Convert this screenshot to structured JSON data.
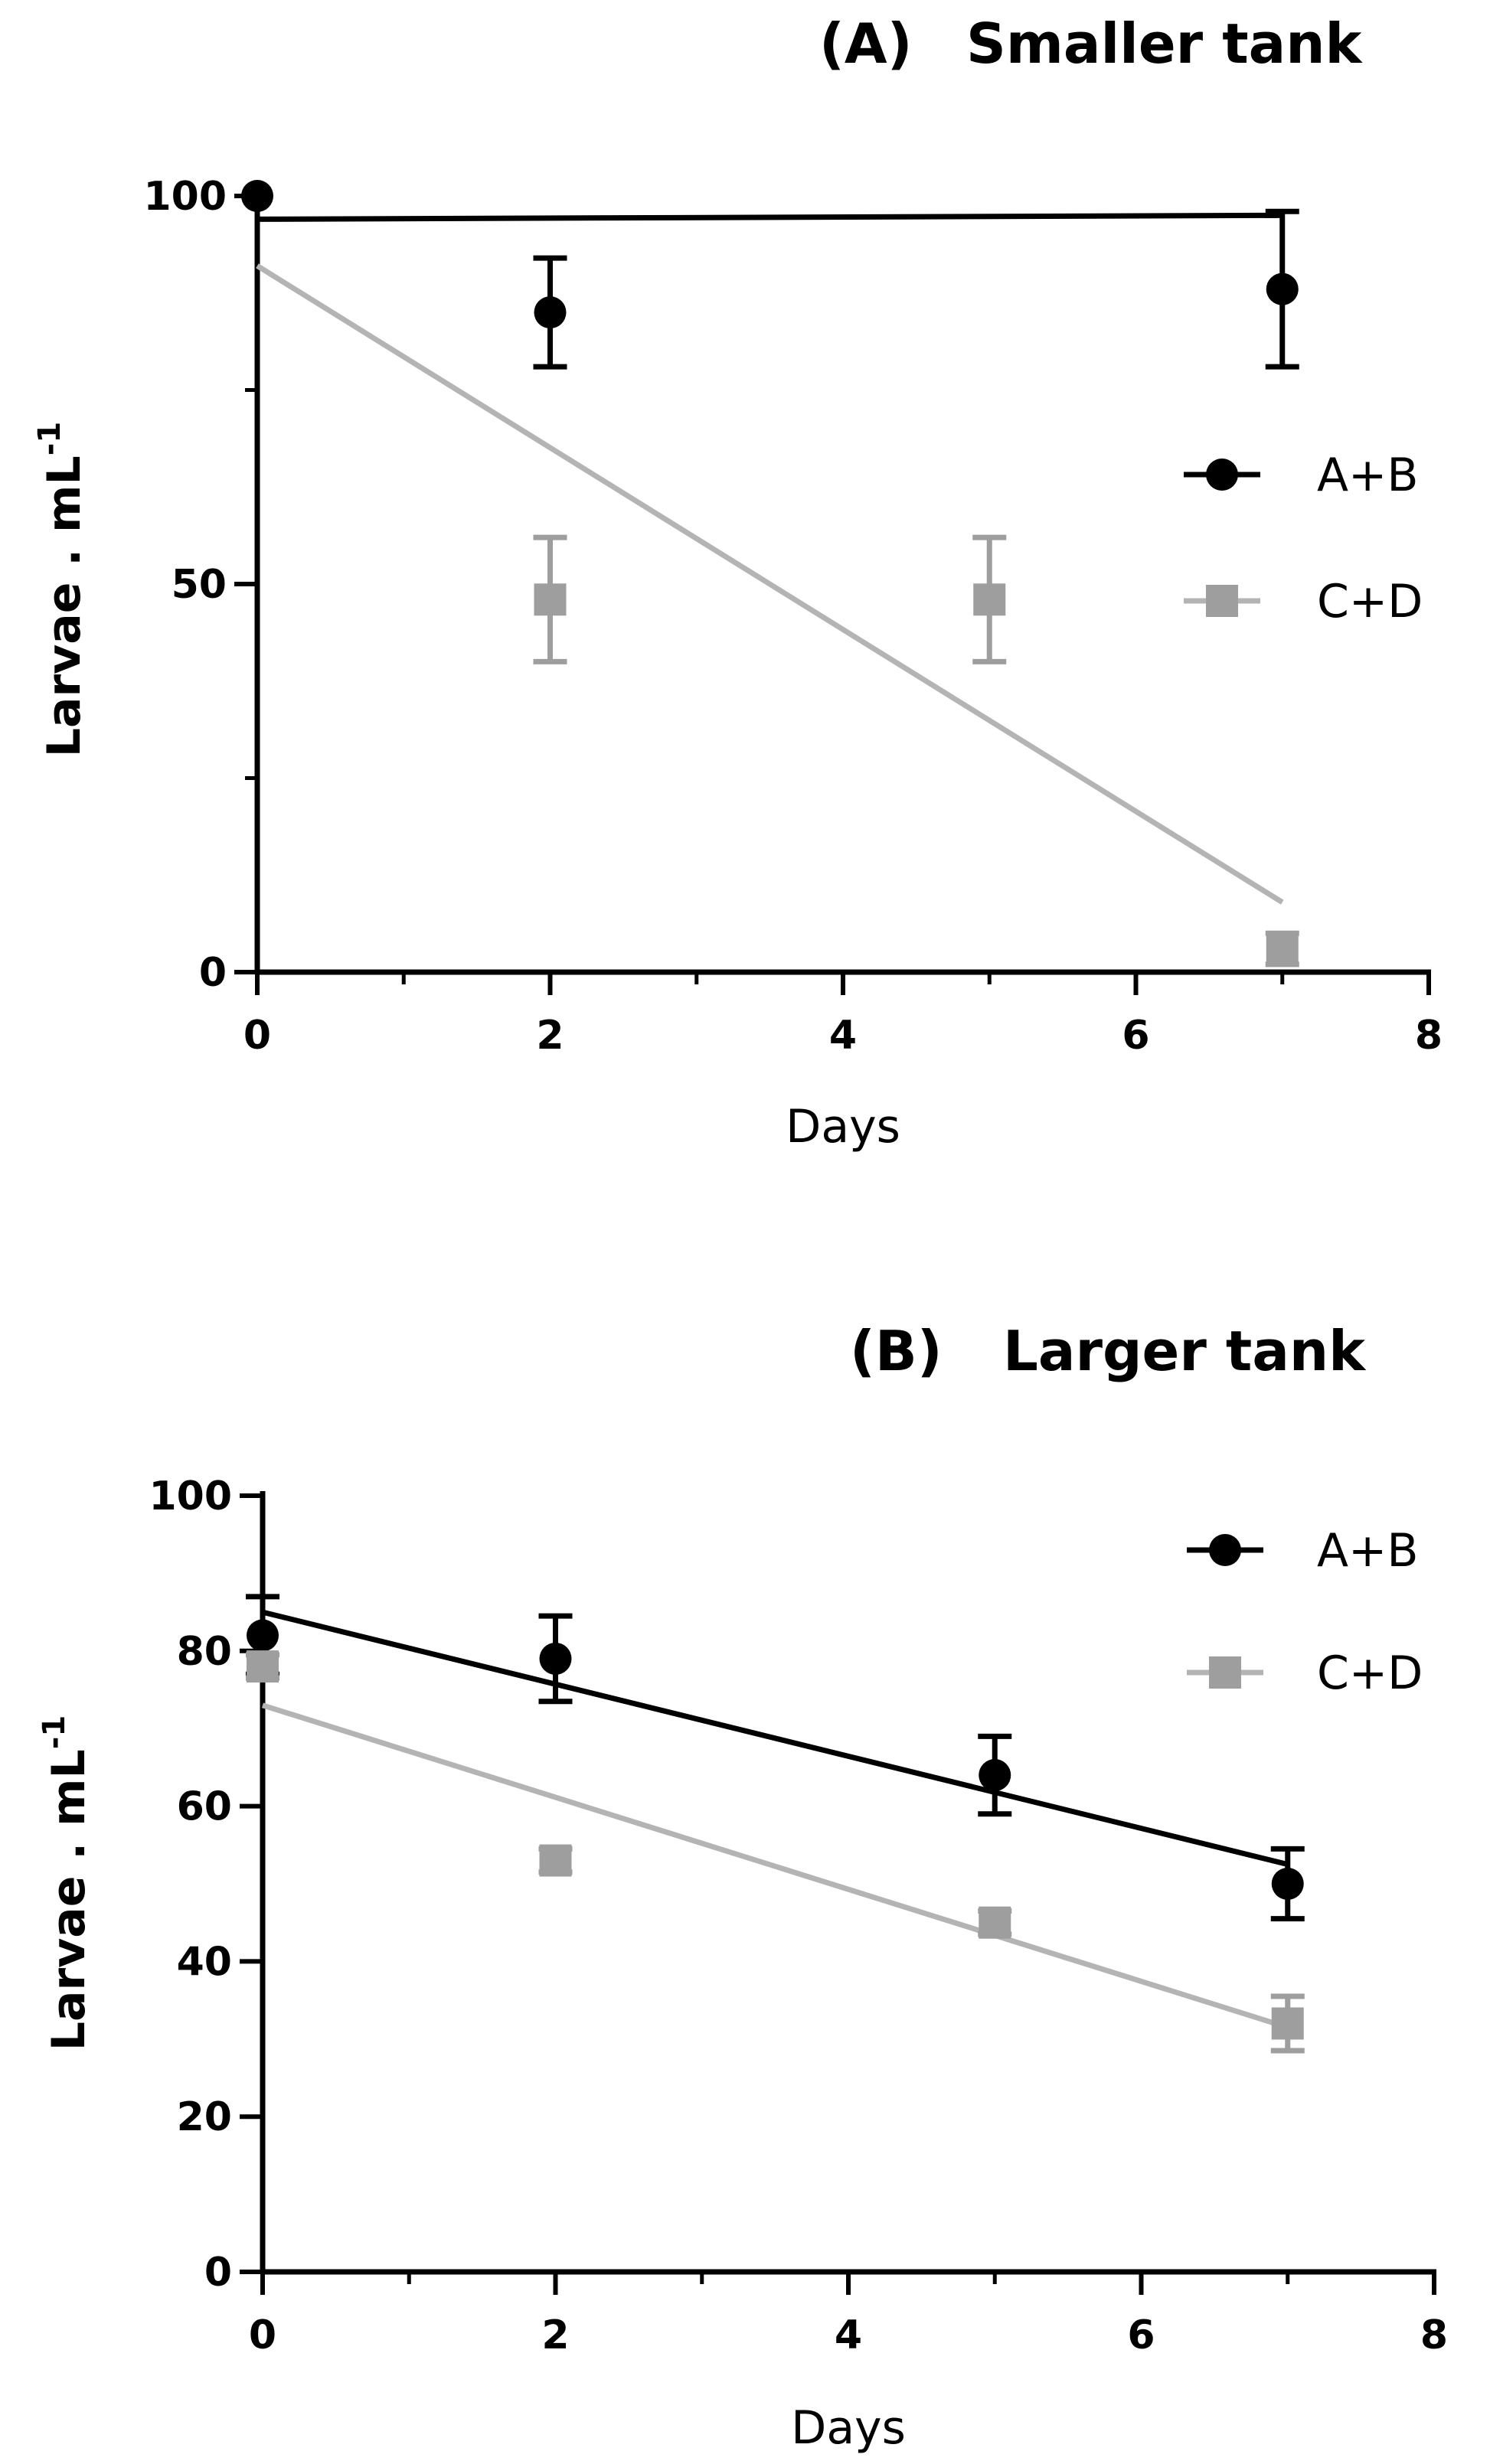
{
  "colors": {
    "black": "#000000",
    "gray_line": "#b4b4b4",
    "gray_marker": "#9e9e9e"
  },
  "chart_data": [
    {
      "type": "scatter",
      "panel_label": "(A)",
      "title": "Smaller tank",
      "xlabel": "Days",
      "ylabel_main": "Larvae . mL",
      "ylabel_sup": "-1",
      "xlim": [
        0,
        8
      ],
      "ylim": [
        0,
        100
      ],
      "xticks": [
        "0",
        "2",
        "4",
        "6",
        "8"
      ],
      "yticks": [
        "0",
        "50",
        "100"
      ],
      "legend_position": "right-center",
      "series": [
        {
          "name": "A+B",
          "marker": "circle",
          "color": "#000000",
          "x": [
            0,
            2,
            7
          ],
          "y": [
            100,
            85,
            88
          ],
          "error": [
            0,
            7,
            10
          ],
          "fit": {
            "x": [
              0,
              7
            ],
            "y": [
              97,
              97.5
            ]
          }
        },
        {
          "name": "C+D",
          "marker": "square",
          "color": "#9e9e9e",
          "x": [
            2,
            5,
            7
          ],
          "y": [
            48,
            48,
            3
          ],
          "error": [
            8,
            8,
            2
          ],
          "fit": {
            "x": [
              0,
              7
            ],
            "y": [
              91,
              9
            ]
          }
        }
      ]
    },
    {
      "type": "scatter",
      "panel_label": "(B)",
      "title": "Larger tank",
      "xlabel": "Days",
      "ylabel_main": "Larvae . mL",
      "ylabel_sup": "-1",
      "xlim": [
        0,
        8
      ],
      "ylim": [
        0,
        100
      ],
      "xticks": [
        "0",
        "2",
        "4",
        "6",
        "8"
      ],
      "yticks": [
        "0",
        "20",
        "40",
        "60",
        "80",
        "100"
      ],
      "legend_position": "top-right",
      "series": [
        {
          "name": "A+B",
          "marker": "circle",
          "color": "#000000",
          "x": [
            0,
            2,
            5,
            7
          ],
          "y": [
            82,
            79,
            64,
            50
          ],
          "error": [
            5,
            5.5,
            5,
            4.5
          ],
          "fit": {
            "x": [
              0,
              7
            ],
            "y": [
              85,
              52.5
            ]
          }
        },
        {
          "name": "C+D",
          "marker": "square",
          "color": "#9e9e9e",
          "x": [
            0,
            2,
            5,
            7
          ],
          "y": [
            78,
            53,
            45,
            32
          ],
          "error": [
            1.5,
            1.5,
            1.5,
            3.5
          ],
          "fit": {
            "x": [
              0,
              7
            ],
            "y": [
              73,
              31.5
            ]
          }
        }
      ]
    }
  ]
}
